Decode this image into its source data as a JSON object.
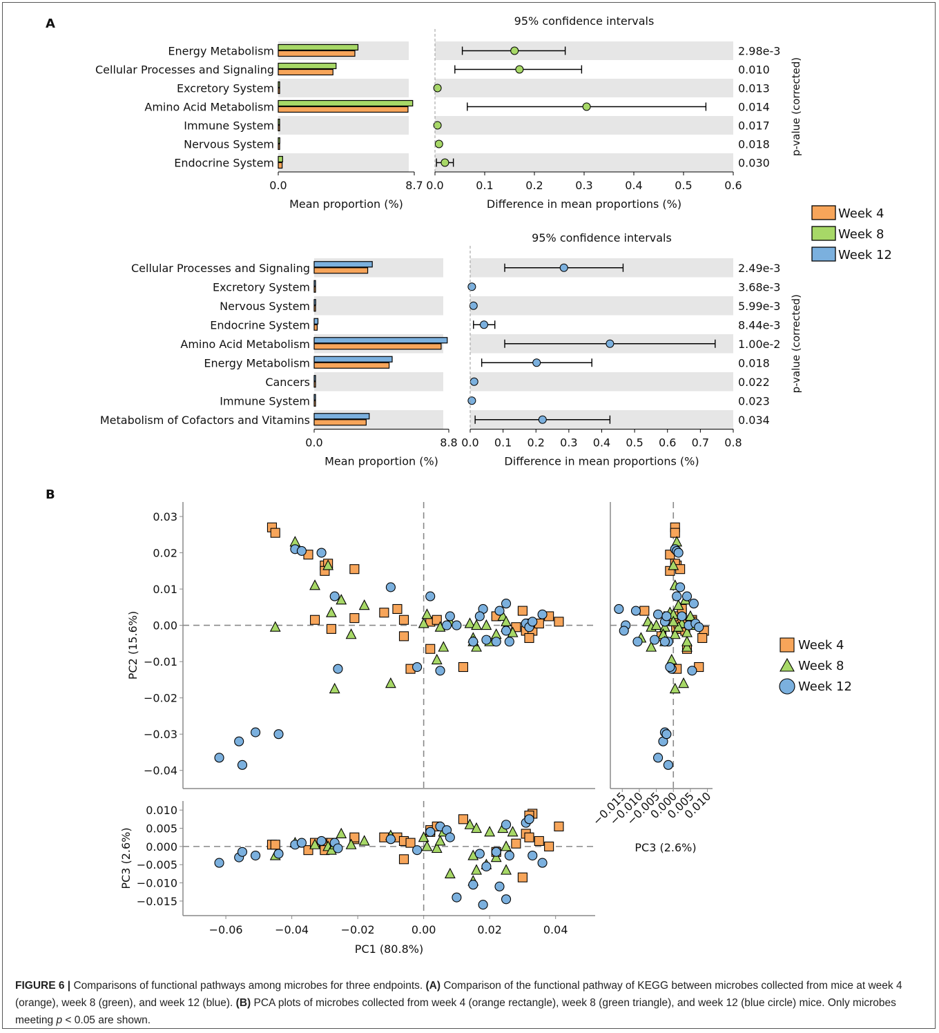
{
  "panel_a_label": "A",
  "panel_b_label": "B",
  "caption": {
    "figure_label": "FIGURE 6 |",
    "intro": "Comparisons of functional pathways among microbes for three endpoints.",
    "a_label": "(A)",
    "a_text": "Comparison of the functional pathway of KEGG between microbes collected from mice at week 4 (orange), week 8 (green), and week 12 (blue).",
    "b_label": "(B)",
    "b_text": "PCA plots of microbes collected from week 4 (orange rectangle), week 8 (green triangle), and week 12 (blue circle) mice. Only microbes meeting",
    "p_symbol": "p",
    "b_text_end": "< 0.05 are shown."
  },
  "colors": {
    "week4": "#f7a55a",
    "week8": "#a7d867",
    "week12": "#7bb0de",
    "band": "#e6e6e6",
    "dashed": "#888888"
  },
  "legend_a": [
    "Week 4",
    "Week 8",
    "Week 12"
  ],
  "legend_b": [
    "Week 4",
    "Week 8",
    "Week 12"
  ],
  "chart_data": [
    {
      "type": "bar",
      "name": "extended error bar week 4 vs week 8",
      "title": "95% confidence intervals",
      "categories": [
        "Energy Metabolism",
        "Cellular Processes and Signaling",
        "Excretory System",
        "Amino Acid Metabolism",
        "Immune System",
        "Nervous System",
        "Endocrine System"
      ],
      "series": [
        {
          "name": "Week 8",
          "values": [
            5.1,
            3.7,
            0.02,
            8.6,
            0.08,
            0.1,
            0.28
          ]
        },
        {
          "name": "Week 4",
          "values": [
            4.9,
            3.5,
            0.01,
            8.3,
            0.07,
            0.09,
            0.25
          ]
        }
      ],
      "bar_xlim": [
        0.0,
        8.7
      ],
      "bar_ticks": [
        "0.0",
        "8.7"
      ],
      "bar_xlabel": "Mean proportion (%)",
      "diff": [
        0.16,
        0.17,
        0.005,
        0.305,
        0.005,
        0.008,
        0.02
      ],
      "ci_low": [
        0.055,
        0.04,
        0.005,
        0.065,
        0.005,
        0.008,
        0.003
      ],
      "ci_high": [
        0.262,
        0.295,
        0.005,
        0.545,
        0.005,
        0.008,
        0.037
      ],
      "diff_xlim": [
        0.0,
        0.6
      ],
      "diff_ticks": [
        "0.0",
        "0.1",
        "0.2",
        "0.3",
        "0.4",
        "0.5",
        "0.6"
      ],
      "diff_xlabel": "Difference in mean proportions (%)",
      "pvalues": [
        "2.98e-3",
        "0.010",
        "0.013",
        "0.014",
        "0.017",
        "0.018",
        "0.030"
      ],
      "pvalue_label": "p-value (corrected)"
    },
    {
      "type": "bar",
      "name": "extended error bar week 4 vs week 12",
      "title": "95% confidence intervals",
      "categories": [
        "Cellular Processes and Signaling",
        "Excretory System",
        "Nervous System",
        "Endocrine System",
        "Amino Acid Metabolism",
        "Energy Metabolism",
        "Cancers",
        "Immune System",
        "Metabolism of Cofactors and Vitamins"
      ],
      "series": [
        {
          "name": "Week 12",
          "values": [
            3.8,
            0.02,
            0.1,
            0.25,
            8.7,
            5.1,
            0.08,
            0.07,
            3.6
          ]
        },
        {
          "name": "Week 4",
          "values": [
            3.5,
            0.01,
            0.09,
            0.2,
            8.3,
            4.9,
            0.07,
            0.06,
            3.4
          ]
        }
      ],
      "bar_xlim": [
        0.0,
        8.8
      ],
      "bar_ticks": [
        "0.0",
        "8.8"
      ],
      "bar_xlabel": "Mean proportion (%)",
      "diff": [
        0.285,
        0.005,
        0.01,
        0.042,
        0.425,
        0.202,
        0.012,
        0.005,
        0.22
      ],
      "ci_low": [
        0.105,
        0.005,
        0.01,
        0.01,
        0.105,
        0.035,
        0.012,
        0.005,
        0.015
      ],
      "ci_high": [
        0.465,
        0.005,
        0.01,
        0.075,
        0.745,
        0.37,
        0.012,
        0.005,
        0.425
      ],
      "diff_xlim": [
        0.0,
        0.8
      ],
      "diff_ticks": [
        "0.0",
        "0.1",
        "0.2",
        "0.3",
        "0.4",
        "0.5",
        "0.6",
        "0.7",
        "0.8"
      ],
      "diff_xlabel": "Difference in mean proportions (%)",
      "pvalues": [
        "2.49e-3",
        "3.68e-3",
        "5.99e-3",
        "8.44e-3",
        "1.00e-2",
        "0.018",
        "0.022",
        "0.023",
        "0.034"
      ],
      "pvalue_label": "p-value (corrected)"
    },
    {
      "type": "scatter",
      "name": "PCA",
      "xlabel": "PC1 (80.8%)",
      "ylabel": "PC2 (15.6%)",
      "zlabel": "PC3 (2.6%)",
      "xlim": [
        -0.073,
        0.052
      ],
      "ylim": [
        -0.045,
        0.034
      ],
      "zlim": [
        -0.019,
        0.0125
      ],
      "xticks": [
        "−0.06",
        "−0.04",
        "−0.02",
        "0.00",
        "0.02",
        "0.04"
      ],
      "yticks": [
        "0.03",
        "0.02",
        "0.01",
        "0.00",
        "−0.01",
        "−0.02",
        "−0.03",
        "−0.04"
      ],
      "zticks": [
        "0.010",
        "0.005",
        "0.000",
        "−0.005",
        "−0.010",
        "−0.015"
      ],
      "side_ticks": [
        "−0.015",
        "−0.010",
        "−0.005",
        "0.000",
        "0.005",
        "0.010"
      ],
      "series": [
        {
          "name": "Week 4",
          "marker": "square",
          "points": [
            [
              -0.046,
              0.027,
              0.0005
            ],
            [
              -0.045,
              0.0255,
              0.0005
            ],
            [
              -0.035,
              0.0195,
              -0.001
            ],
            [
              -0.03,
              0.0165,
              0.001
            ],
            [
              -0.029,
              0.017,
              0.0005
            ],
            [
              -0.03,
              0.015,
              -0.001
            ],
            [
              -0.033,
              0.0015,
              0.001
            ],
            [
              -0.028,
              -0.001,
              0.001
            ],
            [
              -0.021,
              0.0155,
              0.002
            ],
            [
              -0.021,
              0.002,
              0.0025
            ],
            [
              -0.012,
              0.0035,
              0.0025
            ],
            [
              -0.008,
              0.0045,
              0.0025
            ],
            [
              -0.006,
              0.0015,
              0.0015
            ],
            [
              -0.004,
              -0.012,
              0.001
            ],
            [
              -0.006,
              -0.003,
              -0.0035
            ],
            [
              0.002,
              -0.0065,
              0.004
            ],
            [
              0.002,
              0.001,
              0.0045
            ],
            [
              0.004,
              0.0015,
              0.0055
            ],
            [
              0.012,
              -0.0115,
              0.0075
            ],
            [
              0.022,
              0.0025,
              -0.0015
            ],
            [
              0.028,
              -0.0005,
              0.0008
            ],
            [
              0.03,
              0.004,
              -0.0085
            ],
            [
              0.031,
              -0.0015,
              0.0035
            ],
            [
              0.032,
              0.0005,
              0.0025
            ],
            [
              0.033,
              -0.0015,
              0.009
            ],
            [
              0.032,
              -0.0035,
              0.0085
            ],
            [
              0.035,
              0.0005,
              0.0015
            ],
            [
              0.038,
              0.0025,
              0.0
            ],
            [
              0.041,
              0.001,
              0.0055
            ]
          ]
        },
        {
          "name": "Week 8",
          "marker": "triangle",
          "points": [
            [
              -0.045,
              -0.0005,
              -0.0025
            ],
            [
              -0.039,
              0.023,
              0.001
            ],
            [
              -0.033,
              0.011,
              0.0005
            ],
            [
              -0.029,
              0.0165,
              0.0
            ],
            [
              -0.028,
              0.0035,
              -0.001
            ],
            [
              -0.027,
              -0.0175,
              0.0005
            ],
            [
              -0.025,
              0.007,
              0.0035
            ],
            [
              -0.022,
              -0.0025,
              0.0005
            ],
            [
              -0.018,
              0.0055,
              0.0015
            ],
            [
              -0.01,
              -0.016,
              0.003
            ],
            [
              0.0,
              0.0005,
              0.0025
            ],
            [
              0.001,
              0.003,
              0.0
            ],
            [
              0.004,
              -0.0095,
              -0.0005
            ],
            [
              0.005,
              -0.0005,
              0.0015
            ],
            [
              0.006,
              -0.006,
              0.004
            ],
            [
              0.008,
              0.001,
              -0.0075
            ],
            [
              0.014,
              0.0005,
              0.006
            ],
            [
              0.015,
              -0.0035,
              -0.0095
            ],
            [
              0.016,
              -0.006,
              -0.0065
            ],
            [
              0.016,
              0.0,
              0.005
            ],
            [
              0.02,
              -0.0045,
              0.004
            ],
            [
              0.022,
              -0.0025,
              -0.003
            ],
            [
              0.024,
              0.0025,
              0.005
            ],
            [
              0.025,
              -0.0005,
              -0.0065
            ],
            [
              0.025,
              0.001,
              0.0
            ],
            [
              0.015,
              -0.0045,
              -0.0025
            ],
            [
              0.027,
              -0.002,
              0.004
            ],
            [
              0.019,
              0.0,
              -0.005
            ]
          ]
        },
        {
          "name": "Week 12",
          "marker": "circle",
          "points": [
            [
              -0.062,
              -0.0365,
              -0.0045
            ],
            [
              -0.056,
              -0.032,
              -0.003
            ],
            [
              -0.055,
              -0.0385,
              -0.0015
            ],
            [
              -0.051,
              -0.0295,
              -0.0025
            ],
            [
              -0.044,
              -0.03,
              -0.002
            ],
            [
              -0.039,
              0.021,
              0.0005
            ],
            [
              -0.037,
              0.0205,
              0.001
            ],
            [
              -0.031,
              0.02,
              0.0015
            ],
            [
              -0.027,
              0.008,
              0.001
            ],
            [
              -0.026,
              -0.012,
              -0.0005
            ],
            [
              -0.01,
              0.0105,
              0.002
            ],
            [
              -0.002,
              -0.0115,
              -0.001
            ],
            [
              0.002,
              0.008,
              0.004
            ],
            [
              0.005,
              -0.0125,
              0.0055
            ],
            [
              0.007,
              0.0,
              0.0045
            ],
            [
              0.008,
              0.0025,
              0.0025
            ],
            [
              0.01,
              0.0,
              -0.014
            ],
            [
              0.015,
              -0.0045,
              -0.0105
            ],
            [
              0.018,
              0.0045,
              -0.016
            ],
            [
              0.019,
              -0.004,
              -0.0055
            ],
            [
              0.022,
              -0.0045,
              -0.0015
            ],
            [
              0.023,
              0.004,
              -0.011
            ],
            [
              0.025,
              -0.0015,
              -0.0145
            ],
            [
              0.025,
              0.006,
              0.006
            ],
            [
              0.026,
              -0.0045,
              -0.0025
            ],
            [
              0.031,
              0.0005,
              0.0065
            ],
            [
              0.032,
              -0.0005,
              0.0075
            ],
            [
              0.033,
              0.001,
              -0.0025
            ],
            [
              0.036,
              0.003,
              -0.0045
            ],
            [
              0.017,
              0.0025,
              -0.002
            ]
          ]
        }
      ]
    }
  ]
}
